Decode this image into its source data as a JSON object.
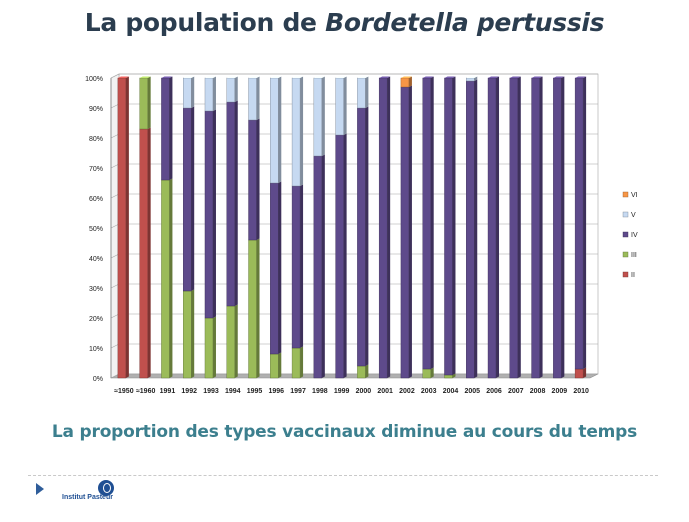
{
  "slide": {
    "title_prefix": "La population de ",
    "title_italic": "Bordetella pertussis",
    "subtitle": "La proportion des types vaccinaux diminue au cours du temps",
    "logo_text": "Institut Pasteur"
  },
  "colors": {
    "II": "#c0504d",
    "III": "#9bbb59",
    "IV": "#5e4a8b",
    "V": "#c6d9f1",
    "VI": "#f79646"
  },
  "chart_data": {
    "type": "bar",
    "stacked": true,
    "categories": [
      "≈1950",
      "≈1960",
      "1991",
      "1992",
      "1993",
      "1994",
      "1995",
      "1996",
      "1997",
      "1998",
      "1999",
      "2000",
      "2001",
      "2002",
      "2003",
      "2004",
      "2005",
      "2006",
      "2007",
      "2008",
      "2009",
      "2010"
    ],
    "series": [
      {
        "name": "II",
        "values": [
          100,
          83,
          0,
          0,
          0,
          0,
          0,
          0,
          0,
          0,
          0,
          0,
          0,
          0,
          0,
          0,
          0,
          0,
          0,
          0,
          0,
          3
        ]
      },
      {
        "name": "III",
        "values": [
          0,
          17,
          66,
          29,
          20,
          24,
          46,
          8,
          10,
          0,
          0,
          4,
          0,
          0,
          3,
          1,
          0,
          0,
          0,
          0,
          0,
          0
        ]
      },
      {
        "name": "IV",
        "values": [
          0,
          0,
          34,
          61,
          69,
          68,
          40,
          57,
          54,
          74,
          81,
          86,
          100,
          97,
          97,
          99,
          99,
          100,
          100,
          100,
          100,
          97
        ]
      },
      {
        "name": "V",
        "values": [
          0,
          0,
          0,
          10,
          11,
          8,
          14,
          35,
          36,
          26,
          19,
          10,
          0,
          0,
          0,
          0,
          1,
          0,
          0,
          0,
          0,
          0
        ]
      },
      {
        "name": "VI",
        "values": [
          0,
          0,
          0,
          0,
          0,
          0,
          0,
          0,
          0,
          0,
          0,
          0,
          0,
          3,
          0,
          0,
          0,
          0,
          0,
          0,
          0,
          0
        ]
      }
    ],
    "y_ticks": [
      "0%",
      "10%",
      "20%",
      "30%",
      "40%",
      "50%",
      "60%",
      "70%",
      "80%",
      "90%",
      "100%"
    ],
    "ylim": [
      0,
      100
    ],
    "legend_position": "right",
    "grid": true
  }
}
